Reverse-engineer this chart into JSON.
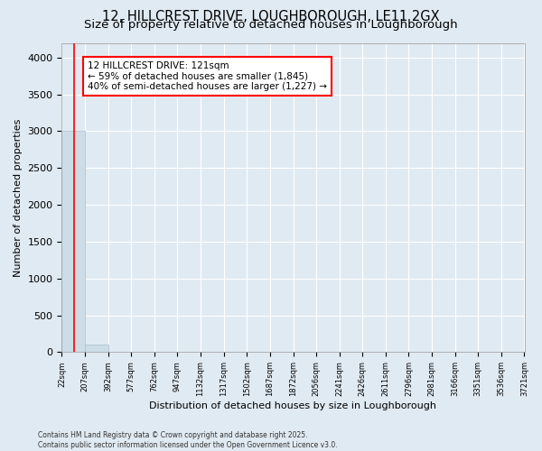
{
  "title1": "12, HILLCREST DRIVE, LOUGHBOROUGH, LE11 2GX",
  "title2": "Size of property relative to detached houses in Loughborough",
  "xlabel": "Distribution of detached houses by size in Loughborough",
  "ylabel": "Number of detached properties",
  "annotation_line1": "12 HILLCREST DRIVE: 121sqm",
  "annotation_line2": "← 59% of detached houses are smaller (1,845)",
  "annotation_line3": "40% of semi-detached houses are larger (1,227) →",
  "footer1": "Contains HM Land Registry data © Crown copyright and database right 2025.",
  "footer2": "Contains public sector information licensed under the Open Government Licence v3.0.",
  "bar_edges": [
    22,
    207,
    392,
    577,
    762,
    947,
    1132,
    1317,
    1502,
    1687,
    1872,
    2056,
    2241,
    2426,
    2611,
    2796,
    2981,
    3166,
    3351,
    3536,
    3721
  ],
  "bar_heights": [
    3000,
    100,
    5,
    2,
    1,
    1,
    1,
    0,
    0,
    0,
    0,
    0,
    0,
    0,
    0,
    0,
    0,
    0,
    0,
    0
  ],
  "bar_color": "#ccdde8",
  "bar_edgecolor": "#aabccc",
  "red_line_x": 121,
  "ylim": [
    0,
    4200
  ],
  "yticks": [
    0,
    500,
    1000,
    1500,
    2000,
    2500,
    3000,
    3500,
    4000
  ],
  "background_color": "#e0eaf2",
  "plot_background": "#e0eaf2",
  "grid_color": "#ffffff",
  "title_fontsize": 10.5,
  "subtitle_fontsize": 9.5,
  "ylabel_fontsize": 8,
  "xlabel_fontsize": 8
}
